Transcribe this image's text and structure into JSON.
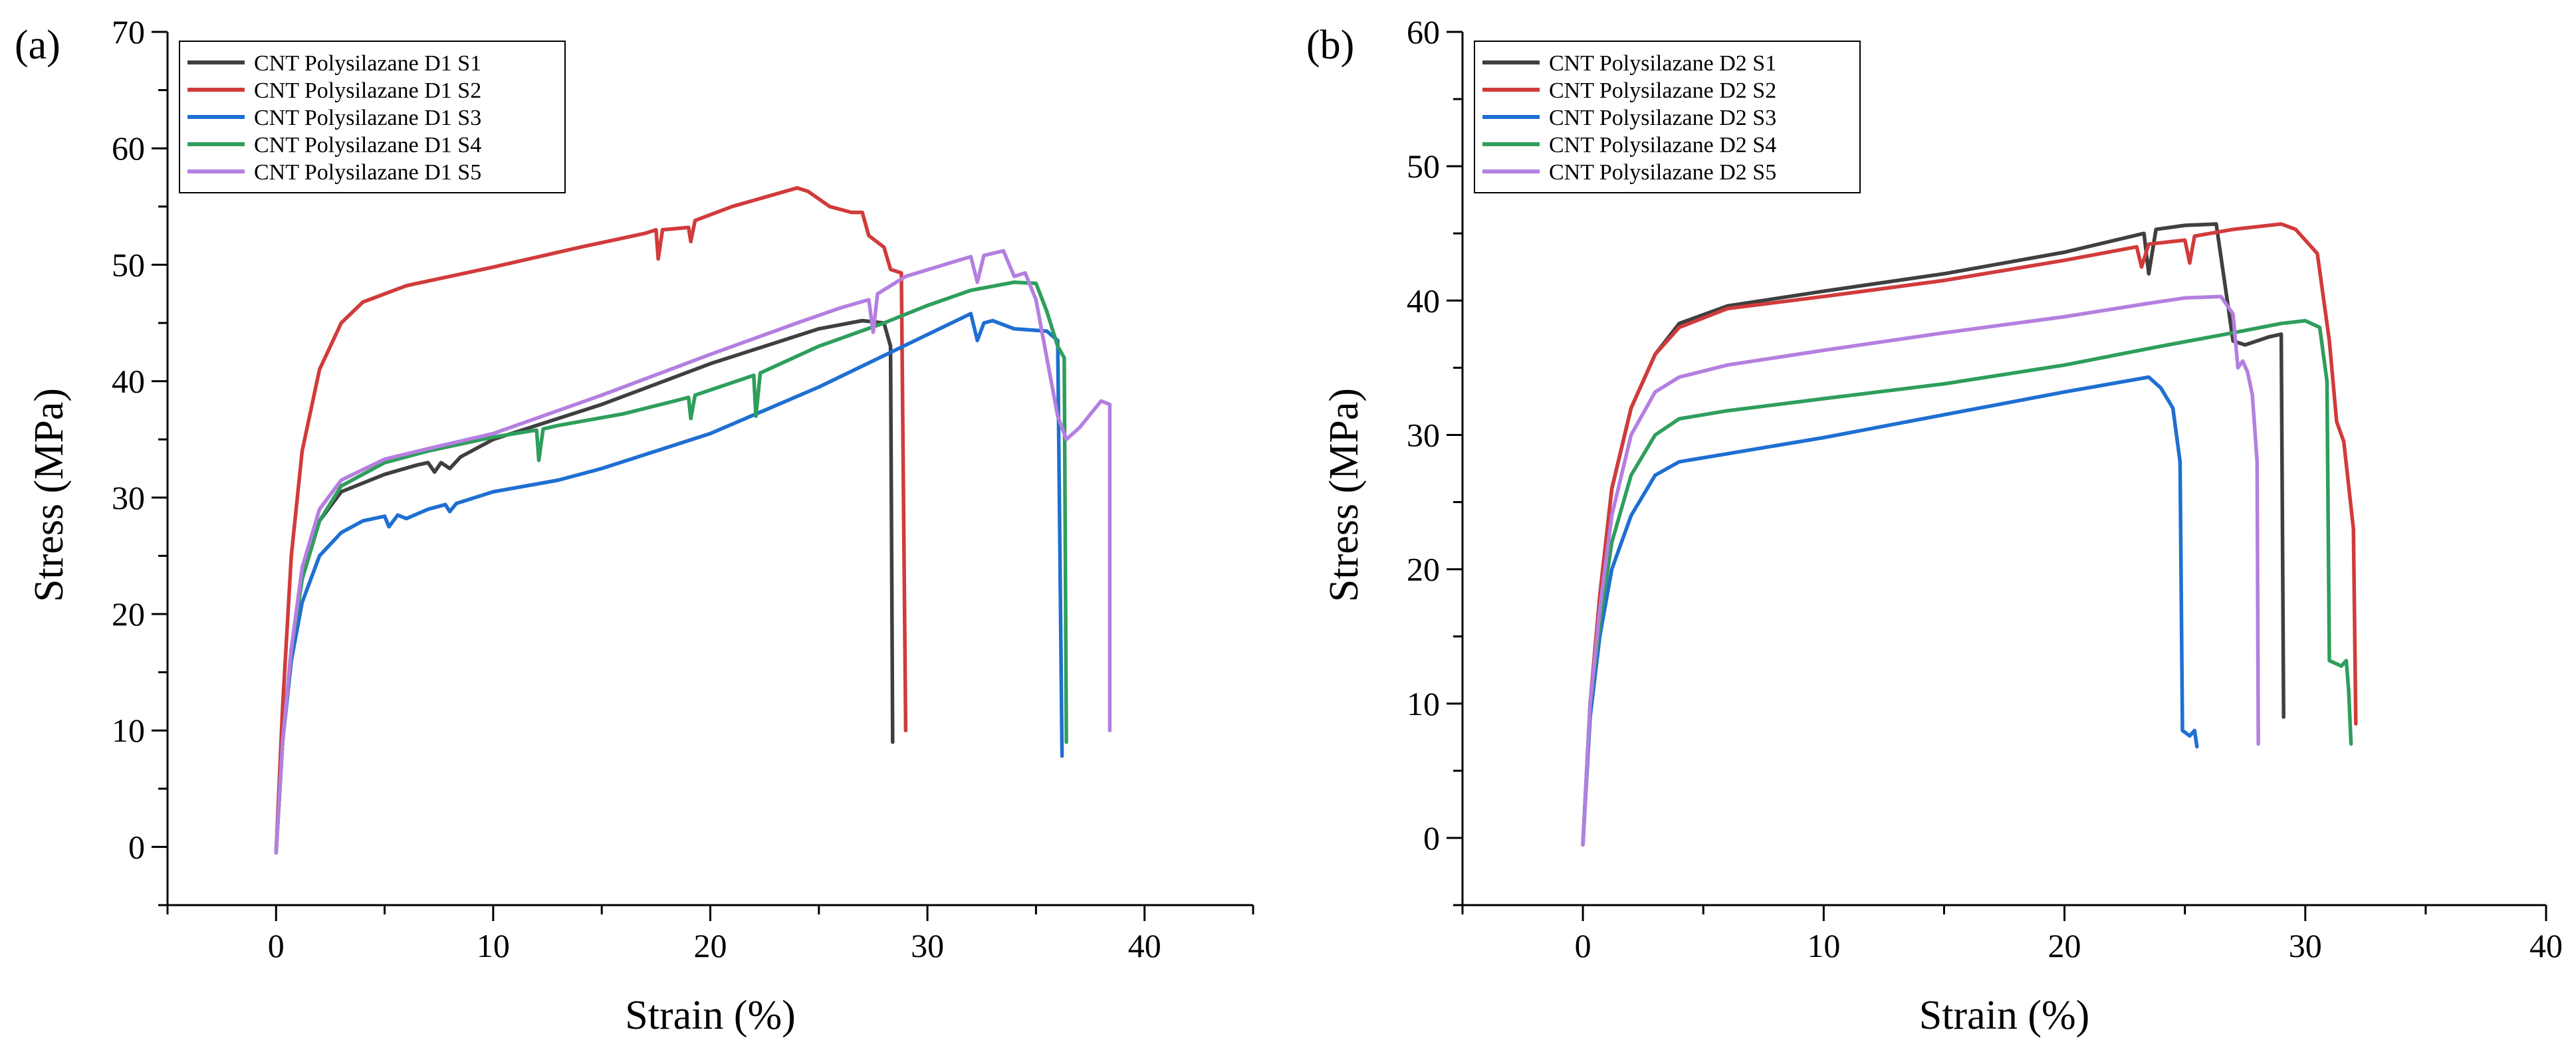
{
  "chart_data": [
    {
      "type": "line",
      "panel_label": "(a)",
      "xlabel": "Strain (%)",
      "ylabel": "Stress (MPa)",
      "xlim": [
        -5,
        45
      ],
      "ylim": [
        -5,
        70
      ],
      "xticks": [
        0,
        10,
        20,
        30,
        40
      ],
      "xtick_labels": [
        "0",
        "10",
        "20",
        "30",
        "40"
      ],
      "yticks": [
        0,
        10,
        20,
        30,
        40,
        50,
        60,
        70
      ],
      "ytick_labels": [
        "0",
        "10",
        "20",
        "30",
        "40",
        "50",
        "60",
        "70"
      ],
      "legend_position": "top-left",
      "series": [
        {
          "name": "CNT Polysilazane D1 S1",
          "color": "#3f3f3f",
          "points": [
            [
              0,
              -0.5
            ],
            [
              0.3,
              9
            ],
            [
              0.7,
              17
            ],
            [
              1.2,
              23
            ],
            [
              2,
              28
            ],
            [
              3,
              30.5
            ],
            [
              5,
              32
            ],
            [
              6.5,
              32.8
            ],
            [
              7,
              33
            ],
            [
              7.3,
              32.2
            ],
            [
              7.6,
              33
            ],
            [
              8,
              32.5
            ],
            [
              8.5,
              33.5
            ],
            [
              10,
              35
            ],
            [
              15,
              38
            ],
            [
              20,
              41.5
            ],
            [
              25,
              44.5
            ],
            [
              27,
              45.2
            ],
            [
              28,
              45
            ],
            [
              28.3,
              43
            ],
            [
              28.4,
              9
            ]
          ]
        },
        {
          "name": "CNT Polysilazane D1 S2",
          "color": "#d13b3b",
          "points": [
            [
              0,
              -0.5
            ],
            [
              0.3,
              12
            ],
            [
              0.7,
              25
            ],
            [
              1.2,
              34
            ],
            [
              2,
              41
            ],
            [
              3,
              45
            ],
            [
              4,
              46.8
            ],
            [
              6,
              48.2
            ],
            [
              10,
              49.8
            ],
            [
              14,
              51.5
            ],
            [
              17,
              52.7
            ],
            [
              17.5,
              53
            ],
            [
              17.6,
              50.5
            ],
            [
              17.8,
              53
            ],
            [
              19,
              53.2
            ],
            [
              19.1,
              52
            ],
            [
              19.3,
              53.8
            ],
            [
              21,
              55
            ],
            [
              24,
              56.6
            ],
            [
              24.5,
              56.3
            ],
            [
              25.5,
              55
            ],
            [
              26.5,
              54.5
            ],
            [
              27,
              54.5
            ],
            [
              27.3,
              52.5
            ],
            [
              28,
              51.5
            ],
            [
              28.3,
              49.6
            ],
            [
              28.8,
              49.3
            ],
            [
              29,
              10
            ]
          ]
        },
        {
          "name": "CNT Polysilazane D1 S3",
          "color": "#1f6fd1",
          "points": [
            [
              0,
              -0.5
            ],
            [
              0.3,
              9
            ],
            [
              0.7,
              16
            ],
            [
              1.2,
              21
            ],
            [
              2,
              25
            ],
            [
              3,
              27
            ],
            [
              4,
              28
            ],
            [
              5,
              28.4
            ],
            [
              5.2,
              27.5
            ],
            [
              5.6,
              28.5
            ],
            [
              6,
              28.2
            ],
            [
              7,
              29
            ],
            [
              7.8,
              29.4
            ],
            [
              8,
              28.8
            ],
            [
              8.3,
              29.5
            ],
            [
              10,
              30.5
            ],
            [
              13,
              31.5
            ],
            [
              15,
              32.5
            ],
            [
              20,
              35.5
            ],
            [
              25,
              39.5
            ],
            [
              30,
              44
            ],
            [
              32,
              45.8
            ],
            [
              32.3,
              43.5
            ],
            [
              32.6,
              45
            ],
            [
              33,
              45.2
            ],
            [
              34,
              44.5
            ],
            [
              35.5,
              44.3
            ],
            [
              36,
              43.5
            ],
            [
              36.2,
              7.8
            ]
          ]
        },
        {
          "name": "CNT Polysilazane D1 S4",
          "color": "#2e9e5c",
          "points": [
            [
              0,
              -0.5
            ],
            [
              0.3,
              9
            ],
            [
              0.7,
              17
            ],
            [
              1.2,
              23
            ],
            [
              2,
              28
            ],
            [
              3,
              31
            ],
            [
              5,
              33
            ],
            [
              7,
              34
            ],
            [
              10,
              35.2
            ],
            [
              12,
              35.8
            ],
            [
              12.1,
              33.2
            ],
            [
              12.3,
              35.9
            ],
            [
              13,
              36.2
            ],
            [
              16,
              37.2
            ],
            [
              19,
              38.6
            ],
            [
              19.1,
              36.8
            ],
            [
              19.3,
              38.8
            ],
            [
              22,
              40.5
            ],
            [
              22.1,
              37
            ],
            [
              22.3,
              40.7
            ],
            [
              25,
              43
            ],
            [
              28,
              45
            ],
            [
              30,
              46.5
            ],
            [
              32,
              47.8
            ],
            [
              34,
              48.5
            ],
            [
              35,
              48.4
            ],
            [
              35.5,
              46
            ],
            [
              36,
              43
            ],
            [
              36.3,
              42
            ],
            [
              36.4,
              9
            ]
          ]
        },
        {
          "name": "CNT Polysilazane D1 S5",
          "color": "#b47fe0",
          "points": [
            [
              0,
              -0.5
            ],
            [
              0.3,
              9
            ],
            [
              0.7,
              17
            ],
            [
              1.2,
              24
            ],
            [
              2,
              29
            ],
            [
              3,
              31.5
            ],
            [
              5,
              33.3
            ],
            [
              7,
              34.2
            ],
            [
              10,
              35.5
            ],
            [
              15,
              38.8
            ],
            [
              20,
              42.3
            ],
            [
              24,
              45
            ],
            [
              26,
              46.3
            ],
            [
              27.3,
              47
            ],
            [
              27.5,
              44.2
            ],
            [
              27.7,
              47.5
            ],
            [
              29,
              49
            ],
            [
              32,
              50.7
            ],
            [
              32.3,
              48.5
            ],
            [
              32.6,
              50.8
            ],
            [
              33.5,
              51.2
            ],
            [
              34,
              49
            ],
            [
              34.5,
              49.3
            ],
            [
              35,
              47
            ],
            [
              35.5,
              42
            ],
            [
              36,
              37
            ],
            [
              36.4,
              35
            ],
            [
              37,
              36
            ],
            [
              38,
              38.3
            ],
            [
              38.4,
              38
            ],
            [
              38.4,
              10
            ]
          ]
        }
      ]
    },
    {
      "type": "line",
      "panel_label": "(b)",
      "xlabel": "Strain (%)",
      "ylabel": "Stress (MPa)",
      "xlim": [
        -5,
        40
      ],
      "ylim": [
        -5,
        60
      ],
      "xticks": [
        0,
        10,
        20,
        30,
        40
      ],
      "xtick_labels": [
        "0",
        "10",
        "20",
        "30",
        "40"
      ],
      "yticks": [
        0,
        10,
        20,
        30,
        40,
        50,
        60
      ],
      "ytick_labels": [
        "0",
        "10",
        "20",
        "30",
        "40",
        "50",
        "60"
      ],
      "legend_position": "top-left",
      "series": [
        {
          "name": "CNT Polysilazane D2 S1",
          "color": "#3f3f3f",
          "points": [
            [
              0,
              -0.5
            ],
            [
              0.3,
              10
            ],
            [
              0.7,
              18
            ],
            [
              1.2,
              26
            ],
            [
              2,
              32
            ],
            [
              3,
              36
            ],
            [
              4,
              38.3
            ],
            [
              6,
              39.6
            ],
            [
              10,
              40.7
            ],
            [
              15,
              42
            ],
            [
              20,
              43.6
            ],
            [
              23.3,
              45
            ],
            [
              23.5,
              42
            ],
            [
              23.8,
              45.3
            ],
            [
              25,
              45.6
            ],
            [
              26.3,
              45.7
            ],
            [
              26.6,
              42
            ],
            [
              27,
              37
            ],
            [
              27.5,
              36.7
            ],
            [
              28.5,
              37.3
            ],
            [
              29,
              37.5
            ],
            [
              29.1,
              9
            ]
          ]
        },
        {
          "name": "CNT Polysilazane D2 S2",
          "color": "#d13b3b",
          "points": [
            [
              0,
              -0.5
            ],
            [
              0.3,
              10
            ],
            [
              0.7,
              18
            ],
            [
              1.2,
              26
            ],
            [
              2,
              32
            ],
            [
              3,
              36
            ],
            [
              4,
              38
            ],
            [
              6,
              39.4
            ],
            [
              10,
              40.3
            ],
            [
              15,
              41.5
            ],
            [
              20,
              43
            ],
            [
              23,
              44
            ],
            [
              23.2,
              42.5
            ],
            [
              23.5,
              44.2
            ],
            [
              25,
              44.5
            ],
            [
              25.2,
              42.8
            ],
            [
              25.4,
              44.8
            ],
            [
              27,
              45.3
            ],
            [
              29,
              45.7
            ],
            [
              29.6,
              45.3
            ],
            [
              30.5,
              43.5
            ],
            [
              31,
              37
            ],
            [
              31.3,
              31
            ],
            [
              31.6,
              29.5
            ],
            [
              32,
              23
            ],
            [
              32.1,
              8.5
            ]
          ]
        },
        {
          "name": "CNT Polysilazane D2 S3",
          "color": "#1f6fd1",
          "points": [
            [
              0,
              -0.5
            ],
            [
              0.3,
              9
            ],
            [
              0.7,
              15
            ],
            [
              1.2,
              20
            ],
            [
              2,
              24
            ],
            [
              3,
              27
            ],
            [
              4,
              28
            ],
            [
              6,
              28.6
            ],
            [
              10,
              29.8
            ],
            [
              15,
              31.5
            ],
            [
              20,
              33.2
            ],
            [
              23.5,
              34.3
            ],
            [
              24,
              33.5
            ],
            [
              24.5,
              32
            ],
            [
              24.8,
              28
            ],
            [
              24.9,
              8
            ],
            [
              25.2,
              7.6
            ],
            [
              25.4,
              8
            ],
            [
              25.5,
              6.8
            ]
          ]
        },
        {
          "name": "CNT Polysilazane D2 S4",
          "color": "#2e9e5c",
          "points": [
            [
              0,
              -0.5
            ],
            [
              0.3,
              10
            ],
            [
              0.7,
              16
            ],
            [
              1.2,
              22
            ],
            [
              2,
              27
            ],
            [
              3,
              30
            ],
            [
              4,
              31.2
            ],
            [
              6,
              31.8
            ],
            [
              10,
              32.7
            ],
            [
              15,
              33.8
            ],
            [
              20,
              35.2
            ],
            [
              24,
              36.6
            ],
            [
              27,
              37.6
            ],
            [
              29,
              38.3
            ],
            [
              30,
              38.5
            ],
            [
              30.6,
              38
            ],
            [
              30.9,
              34
            ],
            [
              31,
              13.2
            ],
            [
              31.5,
              12.8
            ],
            [
              31.7,
              13.2
            ],
            [
              31.8,
              11
            ],
            [
              31.9,
              7
            ]
          ]
        },
        {
          "name": "CNT Polysilazane D2 S5",
          "color": "#b47fe0",
          "points": [
            [
              0,
              -0.5
            ],
            [
              0.3,
              10
            ],
            [
              0.7,
              17
            ],
            [
              1.2,
              24
            ],
            [
              2,
              30
            ],
            [
              3,
              33.2
            ],
            [
              4,
              34.3
            ],
            [
              6,
              35.2
            ],
            [
              10,
              36.3
            ],
            [
              15,
              37.6
            ],
            [
              20,
              38.8
            ],
            [
              23.5,
              39.8
            ],
            [
              25,
              40.2
            ],
            [
              26.5,
              40.3
            ],
            [
              27,
              39
            ],
            [
              27.2,
              35
            ],
            [
              27.4,
              35.5
            ],
            [
              27.6,
              34.7
            ],
            [
              27.8,
              33
            ],
            [
              28,
              28
            ],
            [
              28.05,
              7
            ]
          ]
        }
      ]
    }
  ]
}
